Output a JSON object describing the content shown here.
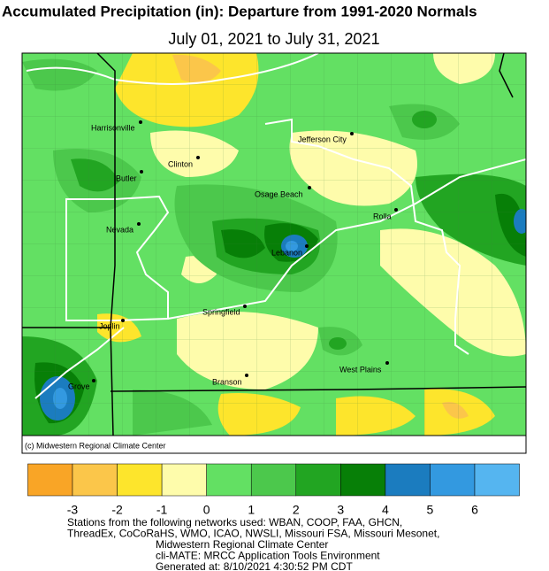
{
  "header": {
    "title": "Accumulated Precipitation (in): Departure from 1991-2020 Normals",
    "subtitle": "July 01, 2021 to July 31, 2021"
  },
  "map": {
    "credit": "(c) Midwestern Regional Climate Center",
    "cities": [
      "Harrisonville",
      "Jefferson City",
      "Clinton",
      "Butler",
      "Osage Beach",
      "Rolla",
      "Nevada",
      "Lebanon",
      "Springfield",
      "Joplin",
      "West Plains",
      "Branson",
      "Grove"
    ]
  },
  "legend": {
    "colors": [
      "#f9a526",
      "#fbc64a",
      "#fde52c",
      "#fefcab",
      "#63e063",
      "#4cc84c",
      "#22a522",
      "#077f07",
      "#1b7cbf",
      "#3399e0",
      "#55b5f0"
    ],
    "ticks": [
      -3,
      -2,
      -1,
      0,
      1,
      2,
      3,
      4,
      5,
      6
    ]
  },
  "footer": {
    "lines": [
      "Stations from the following networks used: WBAN, COOP, FAA, GHCN,",
      "ThreadEx, CoCoRaHS, WMO, ICAO, NWSLI, Missouri FSA, Missouri Mesonet,",
      "Midwestern Regional Climate Center",
      "cli-MATE: MRCC Application Tools Environment",
      "Generated at: 8/10/2021 4:30:52 PM CDT"
    ]
  }
}
